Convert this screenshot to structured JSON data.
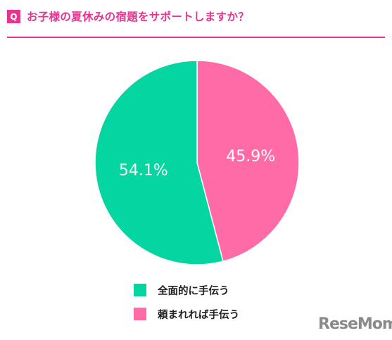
{
  "header": {
    "badge": "Q",
    "question": "お子様の夏休みの宿題をサポートしますか？"
  },
  "colors": {
    "accent": "#e8338f",
    "series_green": "#05d5a1",
    "series_pink": "#ff6ba7"
  },
  "chart_data": {
    "type": "pie",
    "title": "",
    "slices": [
      {
        "label": "全面的に手伝う",
        "value": 54.1,
        "value_label": "54.1%",
        "color": "#05d5a1"
      },
      {
        "label": "頼まれれば手伝う",
        "value": 45.9,
        "value_label": "45.9%",
        "color": "#ff6ba7"
      }
    ],
    "start_angle_deg": 0,
    "direction": "clockwise",
    "legend_position": "bottom"
  },
  "logo": {
    "text": "ReseMom"
  }
}
